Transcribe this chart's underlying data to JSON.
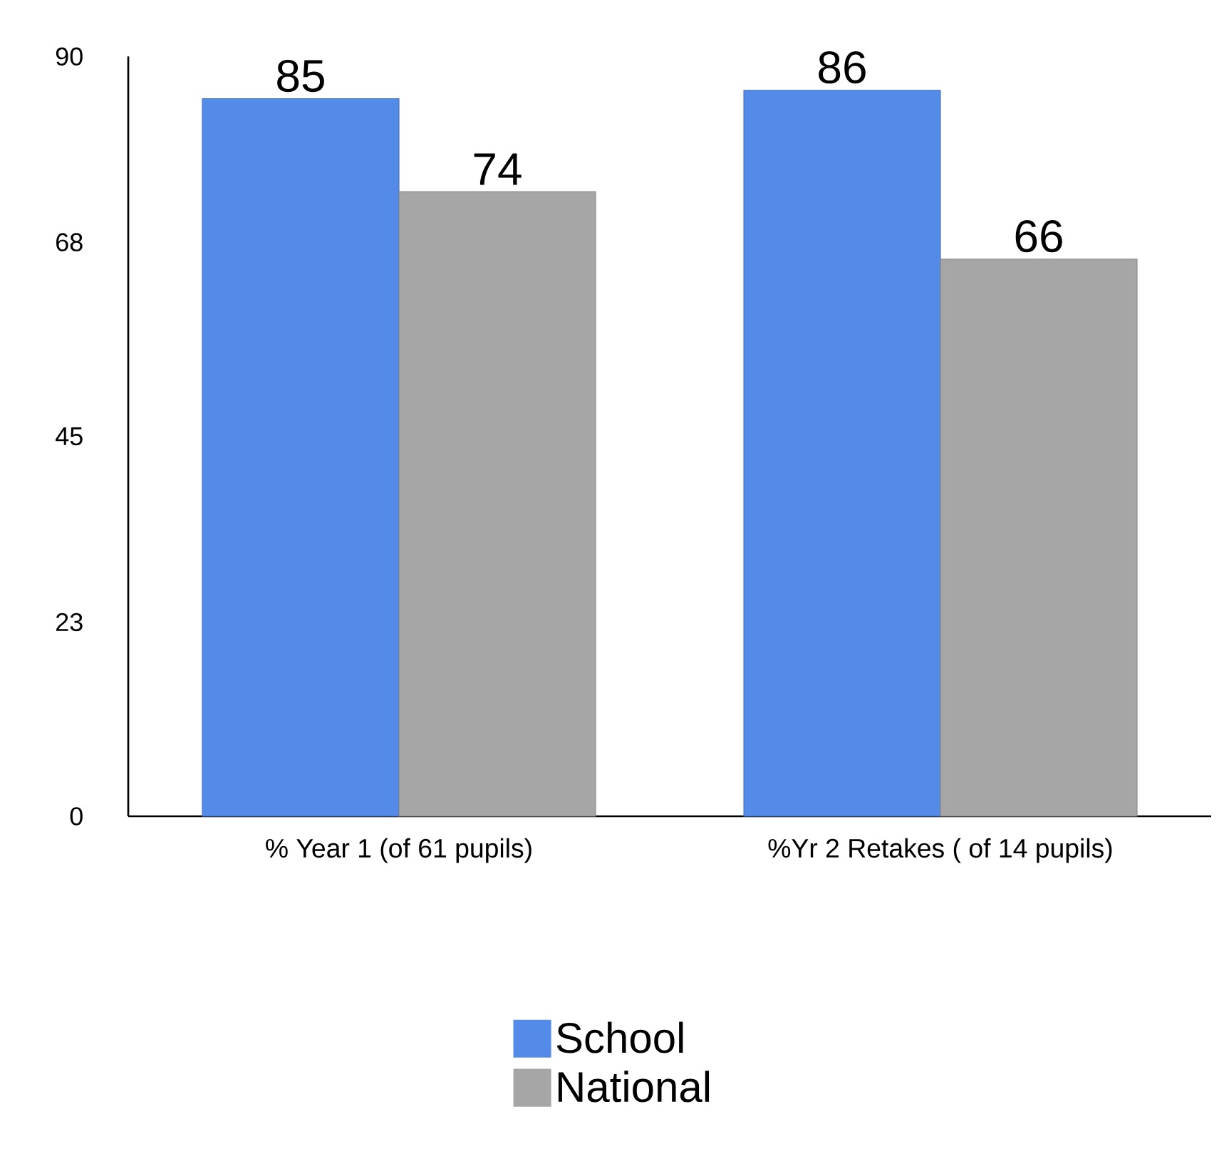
{
  "chart_data": {
    "type": "bar",
    "categories": [
      "% Year 1  (of 61 pupils)",
      "%Yr 2 Retakes ( of 14 pupils)"
    ],
    "series": [
      {
        "name": "School",
        "color": "#548ae8",
        "values": [
          85,
          86
        ]
      },
      {
        "name": "National",
        "color": "#a6a6a6",
        "values": [
          74,
          66
        ]
      }
    ],
    "ylim": [
      0,
      90
    ],
    "yticks": [
      0,
      23,
      45,
      68,
      90
    ],
    "data_labels": true,
    "legend": "bottom"
  }
}
